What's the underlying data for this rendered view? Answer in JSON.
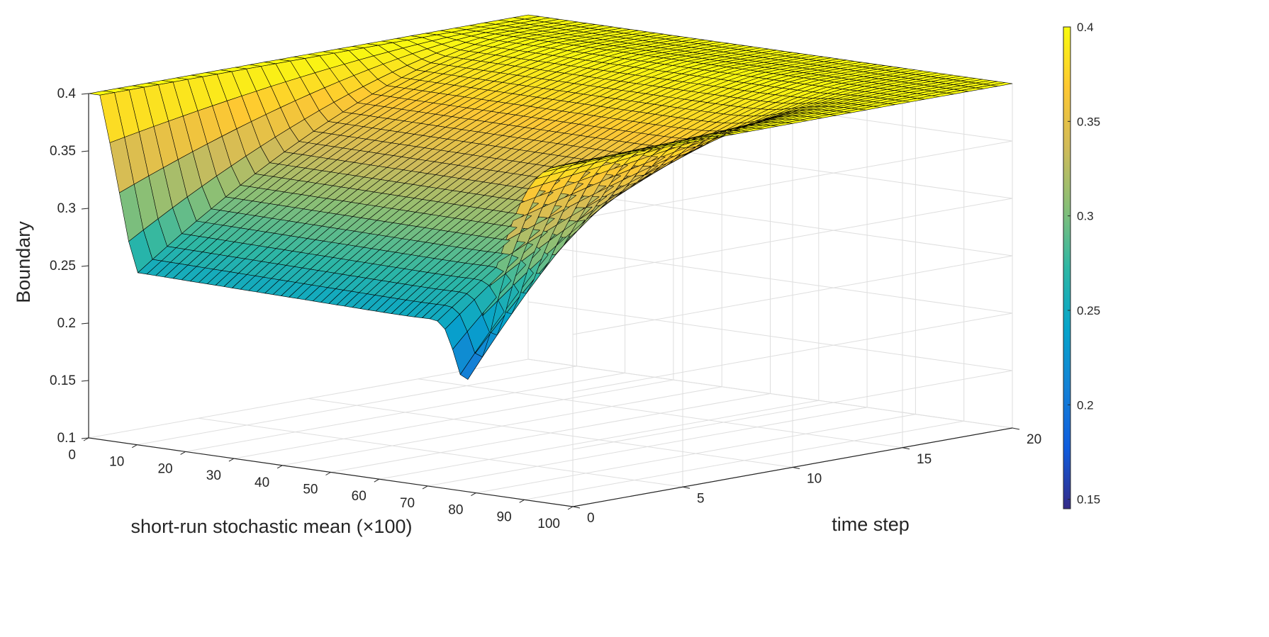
{
  "chart_data": {
    "type": "surface",
    "xlabel": "short-run stochastic mean (×100)",
    "ylabel": "time step",
    "zlabel": "Boundary",
    "xlim": [
      0,
      100
    ],
    "ylim": [
      0,
      20
    ],
    "zlim": [
      0.1,
      0.4
    ],
    "x_ticks": [
      "0",
      "10",
      "20",
      "30",
      "40",
      "50",
      "60",
      "70",
      "80",
      "90",
      "100"
    ],
    "y_ticks": [
      "0",
      "5",
      "10",
      "15",
      "20"
    ],
    "z_ticks": [
      "0.1",
      "0.15",
      "0.2",
      "0.25",
      "0.3",
      "0.35",
      "0.4"
    ],
    "grid": true,
    "colormap": "parula",
    "colorbar": {
      "location": "right",
      "range": [
        0.145,
        0.4
      ],
      "ticks": [
        "0.15",
        "0.2",
        "0.25",
        "0.3",
        "0.35",
        "0.4"
      ]
    },
    "surface_profile": {
      "description_points_at_time_step_0": {
        "x": [
          0,
          3,
          10,
          20,
          30,
          45,
          60,
          70,
          75,
          78,
          80,
          85,
          90,
          100
        ],
        "z": [
          0.4,
          0.4,
          0.28,
          0.245,
          0.245,
          0.25,
          0.255,
          0.25,
          0.235,
          0.2,
          0.2,
          0.26,
          0.35,
          0.4
        ]
      },
      "plateau_z": 0.4,
      "min_z": 0.2
    },
    "colors": {
      "edge": "#000000",
      "grid": "#dedede",
      "axis": "#262626"
    }
  }
}
